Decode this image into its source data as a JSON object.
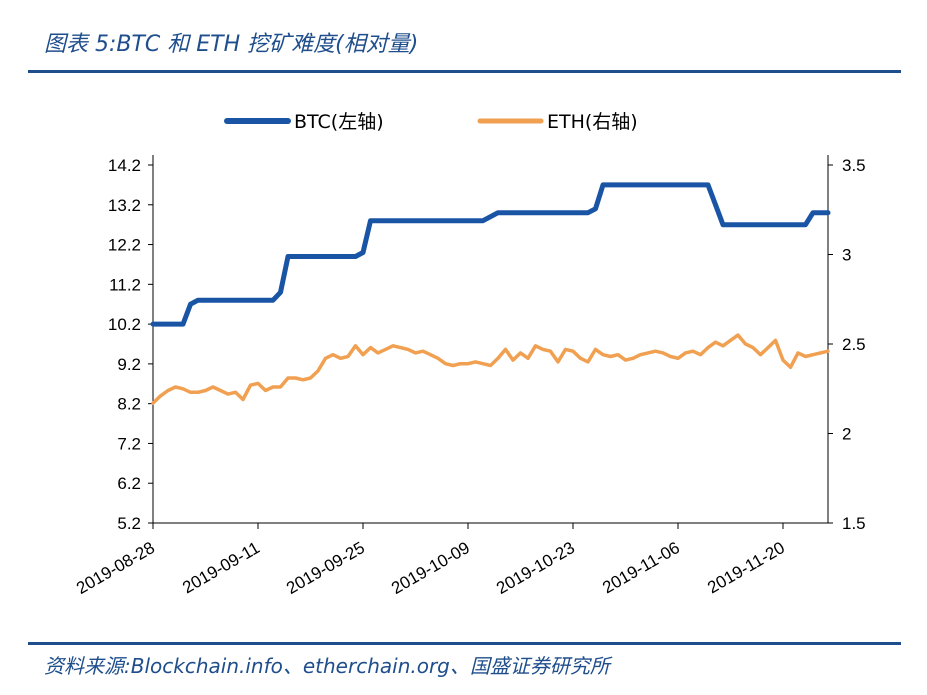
{
  "header": {
    "title": "图表 5:BTC 和 ETH 挖矿难度(相对量)"
  },
  "footer": {
    "source": "资料来源:Blockchain.info、etherchain.org、国盛证券研究所"
  },
  "colors": {
    "rule": "#1f4e8c",
    "btc": "#1a55a5",
    "eth": "#f0a050"
  },
  "chart_data": {
    "type": "line",
    "legend_position": "top",
    "grid": false,
    "x_ticks": [
      "2019-08-28",
      "2019-09-11",
      "2019-09-25",
      "2019-10-09",
      "2019-10-23",
      "2019-11-06",
      "2019-11-20"
    ],
    "x_range": [
      "2019-08-28",
      "2019-11-26"
    ],
    "y_left": {
      "ticks": [
        "5.2",
        "6.2",
        "7.2",
        "8.2",
        "9.2",
        "10.2",
        "11.2",
        "12.2",
        "13.2",
        "14.2"
      ],
      "range": [
        5.2,
        14.2
      ]
    },
    "y_right": {
      "ticks": [
        "1.5",
        "2",
        "2.5",
        "3",
        "3.5"
      ],
      "range": [
        1.5,
        3.5
      ]
    },
    "series": [
      {
        "name": "BTC(左轴)",
        "axis": "left",
        "points": [
          [
            "2019-08-28",
            10.2
          ],
          [
            "2019-09-01",
            10.2
          ],
          [
            "2019-09-02",
            10.7
          ],
          [
            "2019-09-03",
            10.8
          ],
          [
            "2019-09-13",
            10.8
          ],
          [
            "2019-09-14",
            11.0
          ],
          [
            "2019-09-15",
            11.9
          ],
          [
            "2019-09-24",
            11.9
          ],
          [
            "2019-09-25",
            12.0
          ],
          [
            "2019-09-26",
            12.8
          ],
          [
            "2019-10-11",
            12.8
          ],
          [
            "2019-10-13",
            13.0
          ],
          [
            "2019-10-25",
            13.0
          ],
          [
            "2019-10-26",
            13.1
          ],
          [
            "2019-10-27",
            13.7
          ],
          [
            "2019-11-10",
            13.7
          ],
          [
            "2019-11-11",
            13.2
          ],
          [
            "2019-11-12",
            12.7
          ],
          [
            "2019-11-23",
            12.7
          ],
          [
            "2019-11-24",
            13.0
          ],
          [
            "2019-11-26",
            13.0
          ]
        ]
      },
      {
        "name": "ETH(右轴)",
        "axis": "right",
        "points": [
          [
            "2019-08-28",
            2.17
          ],
          [
            "2019-08-29",
            2.21
          ],
          [
            "2019-08-30",
            2.24
          ],
          [
            "2019-08-31",
            2.26
          ],
          [
            "2019-09-01",
            2.25
          ],
          [
            "2019-09-02",
            2.23
          ],
          [
            "2019-09-03",
            2.23
          ],
          [
            "2019-09-04",
            2.24
          ],
          [
            "2019-09-05",
            2.26
          ],
          [
            "2019-09-06",
            2.24
          ],
          [
            "2019-09-07",
            2.22
          ],
          [
            "2019-09-08",
            2.23
          ],
          [
            "2019-09-09",
            2.19
          ],
          [
            "2019-09-10",
            2.27
          ],
          [
            "2019-09-11",
            2.28
          ],
          [
            "2019-09-12",
            2.24
          ],
          [
            "2019-09-13",
            2.26
          ],
          [
            "2019-09-14",
            2.26
          ],
          [
            "2019-09-15",
            2.31
          ],
          [
            "2019-09-16",
            2.31
          ],
          [
            "2019-09-17",
            2.3
          ],
          [
            "2019-09-18",
            2.31
          ],
          [
            "2019-09-19",
            2.35
          ],
          [
            "2019-09-20",
            2.42
          ],
          [
            "2019-09-21",
            2.44
          ],
          [
            "2019-09-22",
            2.42
          ],
          [
            "2019-09-23",
            2.43
          ],
          [
            "2019-09-24",
            2.49
          ],
          [
            "2019-09-25",
            2.44
          ],
          [
            "2019-09-26",
            2.48
          ],
          [
            "2019-09-27",
            2.45
          ],
          [
            "2019-09-28",
            2.47
          ],
          [
            "2019-09-29",
            2.49
          ],
          [
            "2019-09-30",
            2.48
          ],
          [
            "2019-10-01",
            2.47
          ],
          [
            "2019-10-02",
            2.45
          ],
          [
            "2019-10-03",
            2.46
          ],
          [
            "2019-10-04",
            2.44
          ],
          [
            "2019-10-05",
            2.42
          ],
          [
            "2019-10-06",
            2.39
          ],
          [
            "2019-10-07",
            2.38
          ],
          [
            "2019-10-08",
            2.39
          ],
          [
            "2019-10-09",
            2.39
          ],
          [
            "2019-10-10",
            2.4
          ],
          [
            "2019-10-11",
            2.39
          ],
          [
            "2019-10-12",
            2.38
          ],
          [
            "2019-10-13",
            2.42
          ],
          [
            "2019-10-14",
            2.47
          ],
          [
            "2019-10-15",
            2.41
          ],
          [
            "2019-10-16",
            2.45
          ],
          [
            "2019-10-17",
            2.42
          ],
          [
            "2019-10-18",
            2.49
          ],
          [
            "2019-10-19",
            2.47
          ],
          [
            "2019-10-20",
            2.46
          ],
          [
            "2019-10-21",
            2.4
          ],
          [
            "2019-10-22",
            2.47
          ],
          [
            "2019-10-23",
            2.46
          ],
          [
            "2019-10-24",
            2.42
          ],
          [
            "2019-10-25",
            2.4
          ],
          [
            "2019-10-26",
            2.47
          ],
          [
            "2019-10-27",
            2.44
          ],
          [
            "2019-10-28",
            2.43
          ],
          [
            "2019-10-29",
            2.44
          ],
          [
            "2019-10-30",
            2.41
          ],
          [
            "2019-10-31",
            2.42
          ],
          [
            "2019-11-01",
            2.44
          ],
          [
            "2019-11-02",
            2.45
          ],
          [
            "2019-11-03",
            2.46
          ],
          [
            "2019-11-04",
            2.45
          ],
          [
            "2019-11-05",
            2.43
          ],
          [
            "2019-11-06",
            2.42
          ],
          [
            "2019-11-07",
            2.45
          ],
          [
            "2019-11-08",
            2.46
          ],
          [
            "2019-11-09",
            2.44
          ],
          [
            "2019-11-10",
            2.48
          ],
          [
            "2019-11-11",
            2.51
          ],
          [
            "2019-11-12",
            2.49
          ],
          [
            "2019-11-13",
            2.52
          ],
          [
            "2019-11-14",
            2.55
          ],
          [
            "2019-11-15",
            2.5
          ],
          [
            "2019-11-16",
            2.48
          ],
          [
            "2019-11-17",
            2.44
          ],
          [
            "2019-11-18",
            2.48
          ],
          [
            "2019-11-19",
            2.52
          ],
          [
            "2019-11-20",
            2.41
          ],
          [
            "2019-11-21",
            2.37
          ],
          [
            "2019-11-22",
            2.45
          ],
          [
            "2019-11-23",
            2.43
          ],
          [
            "2019-11-24",
            2.44
          ],
          [
            "2019-11-25",
            2.45
          ],
          [
            "2019-11-26",
            2.46
          ]
        ]
      }
    ]
  }
}
